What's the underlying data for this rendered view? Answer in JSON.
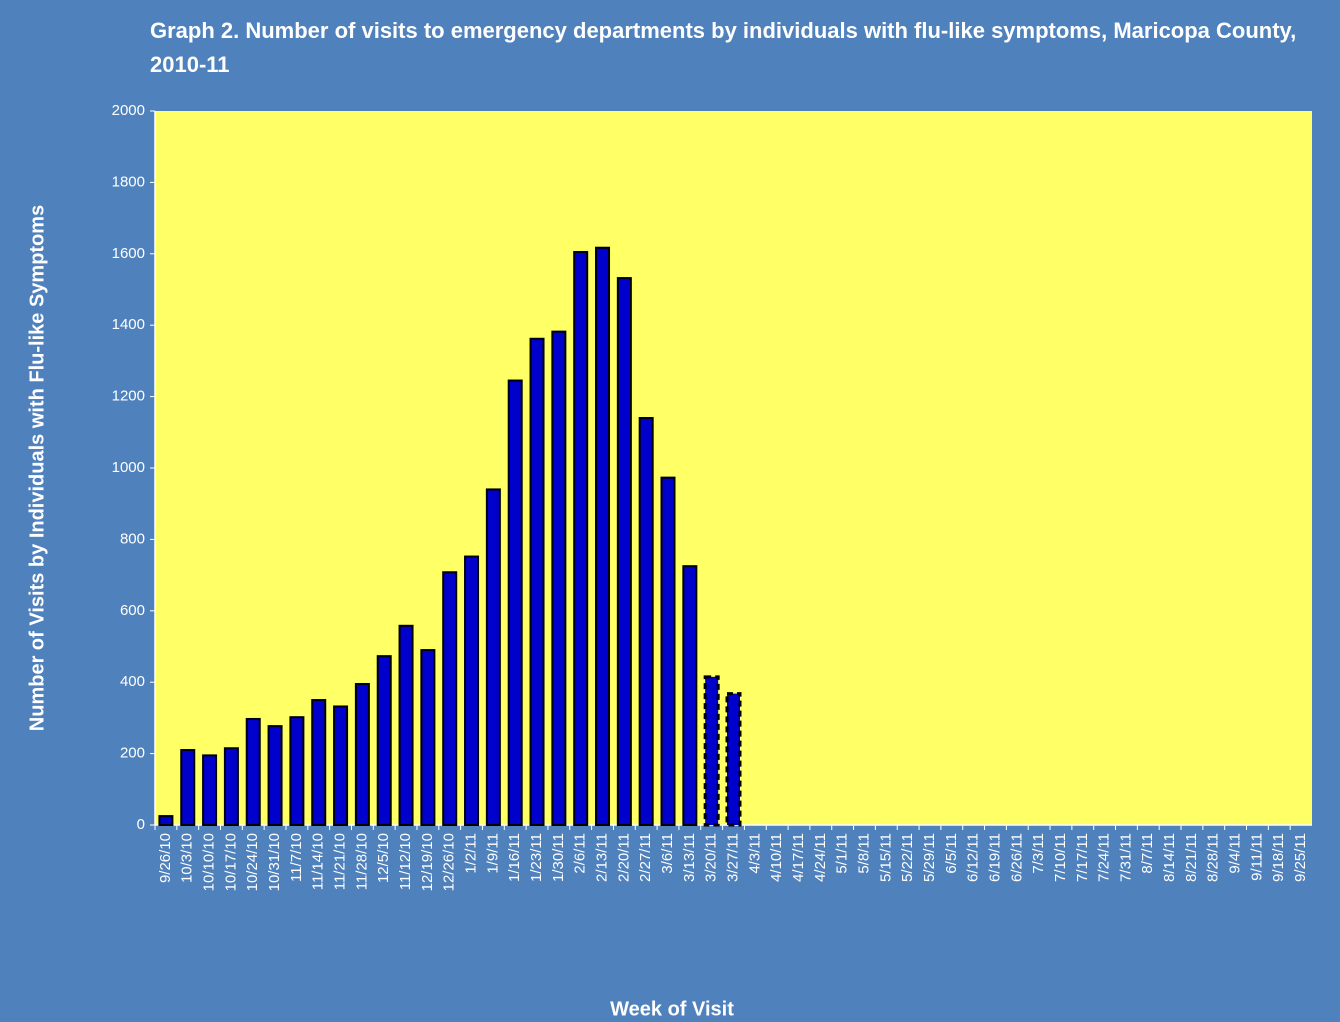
{
  "chart_data": {
    "type": "bar",
    "title": "Graph 2. Number of visits to emergency departments by individuals with flu-like symptoms, Maricopa County, 2010-11",
    "x_label": "Week of Visit",
    "y_label": "Number of Visits by Individuals with Flu-like Symptoms",
    "categories": [
      "9/26/10",
      "10/3/10",
      "10/10/10",
      "10/17/10",
      "10/24/10",
      "10/31/10",
      "11/7/10",
      "11/14/10",
      "11/21/10",
      "11/28/10",
      "12/5/10",
      "11/12/10",
      "12/19/10",
      "12/26/10",
      "1/2/11",
      "1/9/11",
      "1/16/11",
      "1/23/11",
      "1/30/11",
      "2/6/11",
      "2/13/11",
      "2/20/11",
      "2/27/11",
      "3/6/11",
      "3/13/11",
      "3/20/11",
      "3/27/11",
      "4/3/11",
      "4/10/11",
      "4/17/11",
      "4/24/11",
      "5/1/11",
      "5/8/11",
      "5/15/11",
      "5/22/11",
      "5/29/11",
      "6/5/11",
      "6/12/11",
      "6/19/11",
      "6/26/11",
      "7/3/11",
      "7/10/11",
      "7/17/11",
      "7/24/11",
      "7/31/11",
      "8/7/11",
      "8/14/11",
      "8/21/11",
      "8/28/11",
      "9/4/11",
      "9/11/11",
      "9/18/11",
      "9/25/11"
    ],
    "values": [
      25,
      210,
      195,
      215,
      297,
      277,
      302,
      350,
      332,
      395,
      473,
      558,
      490,
      708,
      752,
      940,
      1245,
      1362,
      1382,
      1605,
      1617,
      1532,
      1140,
      973,
      725,
      415,
      368,
      null,
      null,
      null,
      null,
      null,
      null,
      null,
      null,
      null,
      null,
      null,
      null,
      null,
      null,
      null,
      null,
      null,
      null,
      null,
      null,
      null,
      null,
      null,
      null,
      null,
      null
    ],
    "dashed": [
      false,
      false,
      false,
      false,
      false,
      false,
      false,
      false,
      false,
      false,
      false,
      false,
      false,
      false,
      false,
      false,
      false,
      false,
      false,
      false,
      false,
      false,
      false,
      false,
      false,
      true,
      true,
      false,
      false,
      false,
      false,
      false,
      false,
      false,
      false,
      false,
      false,
      false,
      false,
      false,
      false,
      false,
      false,
      false,
      false,
      false,
      false,
      false,
      false,
      false,
      false,
      false,
      false
    ],
    "color": "#0000cc",
    "plot_color": "#ffff66",
    "ylim": [
      0,
      2000
    ],
    "yticks": [
      0,
      200,
      400,
      600,
      800,
      1000,
      1200,
      1400,
      1600,
      1800,
      2000
    ],
    "grid": false
  }
}
